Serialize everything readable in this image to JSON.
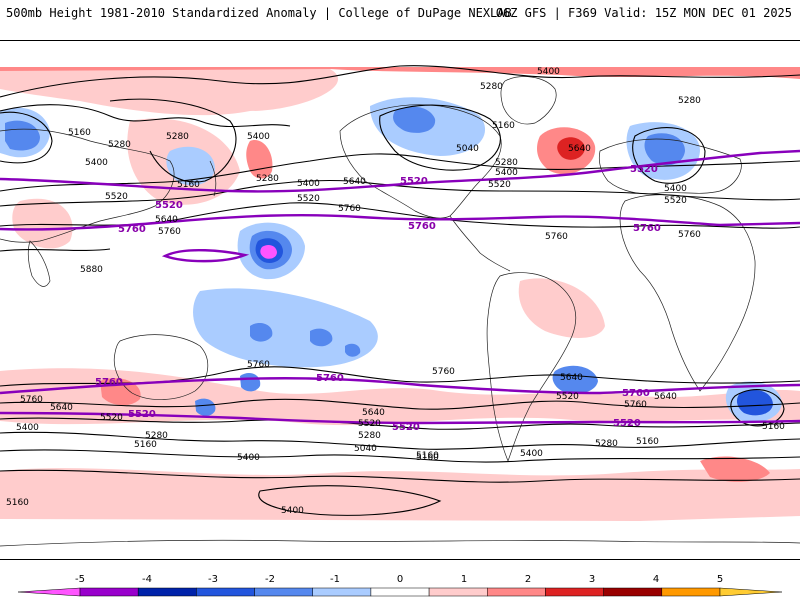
{
  "header": {
    "title_left": "500mb Height 1981-2010 Standardized Anomaly | College of DuPage NEXLAB",
    "title_right": "06Z GFS | F369 Valid: 15Z MON DEC 01 2025"
  },
  "colors": {
    "purple_contour": "#8800bb",
    "black_contour": "#000000",
    "coast": "#222222"
  },
  "contour_labels": {
    "black": [
      "5400",
      "5280",
      "5160",
      "5280",
      "5400",
      "5160",
      "5280",
      "5400",
      "5520",
      "5640",
      "5760",
      "5880",
      "5400",
      "5520",
      "5640",
      "5760",
      "5280",
      "5160",
      "5040",
      "5280",
      "5400",
      "5520",
      "5640",
      "5760",
      "5280",
      "5400",
      "5520",
      "5760",
      "5760",
      "5640",
      "5520",
      "5400",
      "5280",
      "5160",
      "5760",
      "5640",
      "5520",
      "5400",
      "5280",
      "5160",
      "5040",
      "5160",
      "5400",
      "5760",
      "5640",
      "5520",
      "5280",
      "5160",
      "5760",
      "5640",
      "5160",
      "5400",
      "5160"
    ],
    "purple": [
      "5520",
      "5760",
      "5520",
      "5760",
      "5520",
      "5760",
      "5760",
      "5520",
      "5760",
      "5520",
      "5760",
      "5520"
    ]
  },
  "colorbar": {
    "ticks": [
      "-5",
      "-4",
      "-3",
      "-2",
      "-1",
      "0",
      "1",
      "2",
      "3",
      "4",
      "5"
    ],
    "colors": [
      "#ff55ff",
      "#9900cc",
      "#0022aa",
      "#2255dd",
      "#5588ee",
      "#aaccff",
      "#ffffff",
      "#ffcccc",
      "#ff8888",
      "#dd2222",
      "#990000",
      "#ff9900",
      "#ffcc33"
    ]
  }
}
